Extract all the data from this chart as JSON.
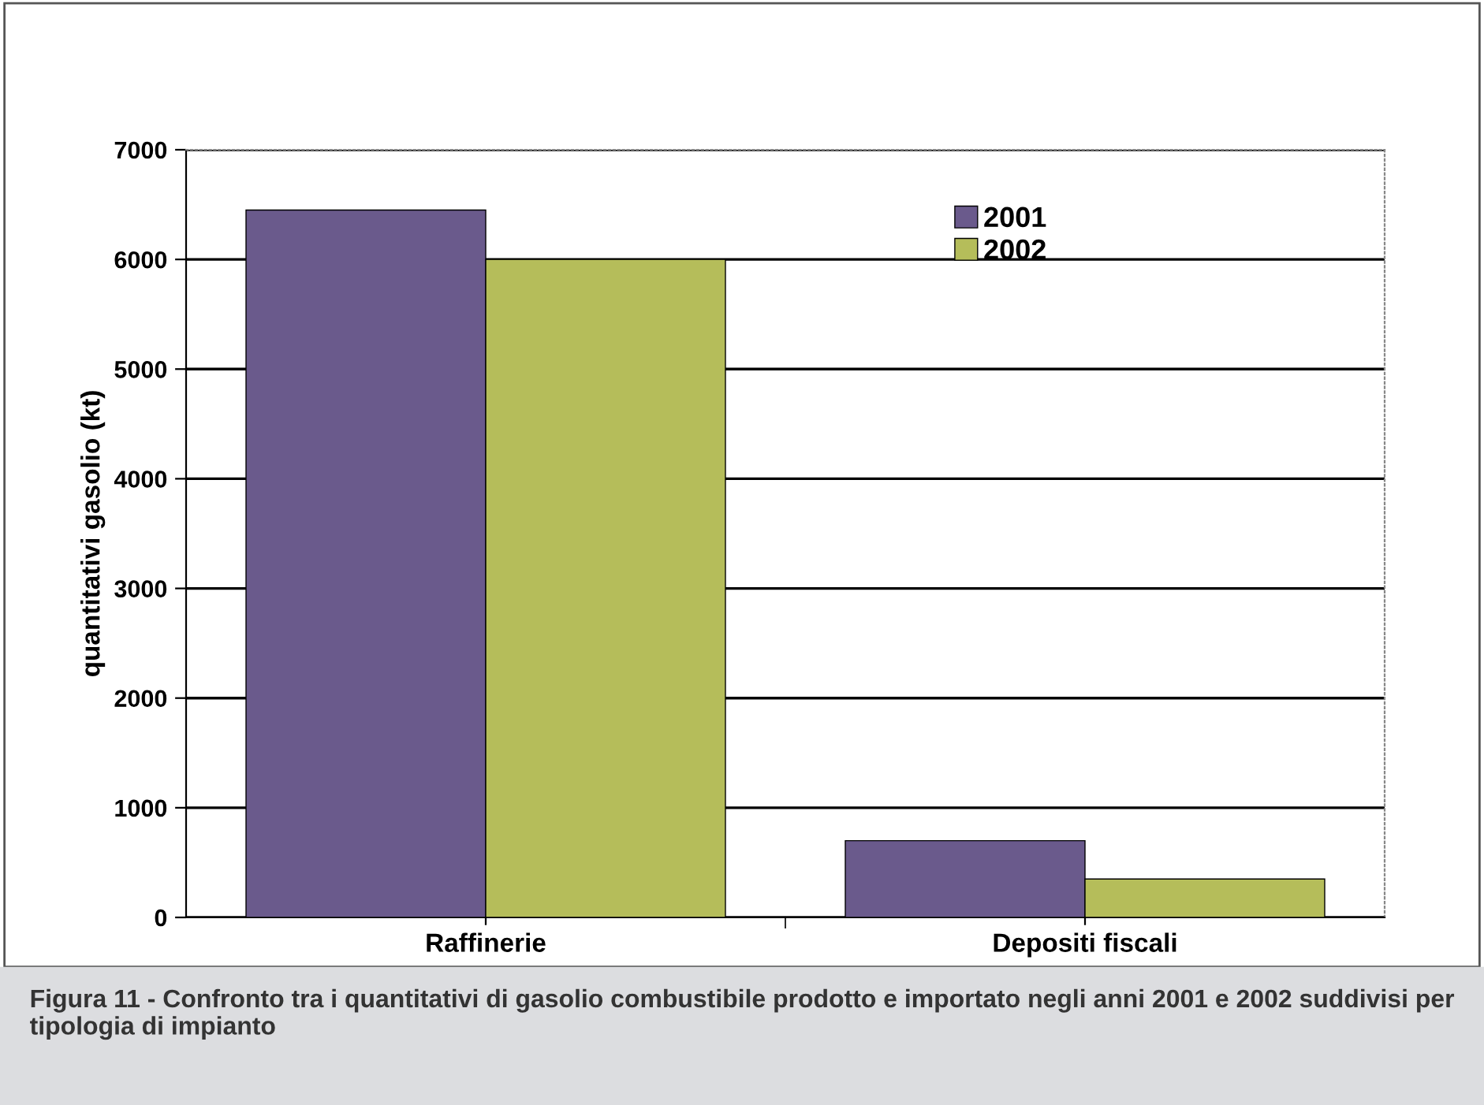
{
  "chart_data": {
    "type": "bar",
    "categories": [
      "Raffinerie",
      "Depositi fiscali"
    ],
    "series": [
      {
        "name": "2001",
        "color": "#6a5a8c",
        "values": [
          6450,
          700
        ]
      },
      {
        "name": "2002",
        "color": "#b5bd5a",
        "values": [
          6000,
          350
        ]
      }
    ],
    "ylabel": "quantitativi gasolio (kt)",
    "ylim": [
      0,
      7000
    ],
    "yticks": [
      0,
      1000,
      2000,
      3000,
      4000,
      5000,
      6000,
      7000
    ],
    "grid": "y",
    "legend": "top right",
    "annotations": [
      "Figura 11 - Confronto tra i quantitativi di gasolio combustibile prodotto e importato negli anni 2001 e 2002 suddivisi per tipologia di impianto"
    ]
  }
}
